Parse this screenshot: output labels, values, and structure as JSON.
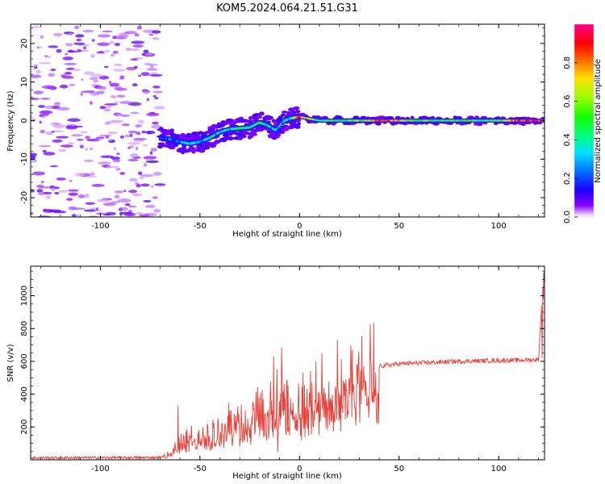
{
  "title": "KOM5.2024.064.21.51.G31",
  "chart_data": [
    {
      "type": "heatmap",
      "xlabel": "Height of straight line (km)",
      "ylabel": "Frequency (Hz)",
      "xlim": [
        -135,
        123
      ],
      "ylim": [
        -25,
        25
      ],
      "xticks": [
        -100,
        -50,
        0,
        50,
        100
      ],
      "yticks": [
        -20,
        -10,
        0,
        10,
        20
      ],
      "colorbar": {
        "label": "Normalized spectral amplitude",
        "range": [
          0,
          1
        ],
        "ticks": [
          "0.0",
          "0.2",
          "0.4",
          "0.6",
          "0.8"
        ],
        "colormap": "gist_ncar"
      },
      "ridge": {
        "x": [
          -70,
          -65,
          -60,
          -55,
          -50,
          -45,
          -40,
          -35,
          -30,
          -25,
          -20,
          -17,
          -15,
          -12,
          -10,
          -8,
          -5,
          0,
          5,
          10,
          20,
          30,
          40,
          60,
          80,
          100,
          110,
          123
        ],
        "y": [
          -4.5,
          -4.8,
          -5.5,
          -6,
          -5.5,
          -4.5,
          -3,
          -2.2,
          -2,
          -1.8,
          -0.5,
          -1,
          -1.5,
          -2.5,
          -1.5,
          -0.2,
          0.5,
          1,
          0.5,
          0,
          0,
          0,
          0,
          0,
          0,
          0,
          0,
          0
        ],
        "amplitude": [
          0.1,
          0.15,
          0.22,
          0.3,
          0.25,
          0.28,
          0.3,
          0.32,
          0.35,
          0.38,
          0.4,
          0.36,
          0.3,
          0.35,
          0.3,
          0.25,
          0.32,
          0.85,
          0.6,
          0.4,
          0.45,
          0.5,
          0.85,
          0.5,
          0.45,
          0.45,
          0.85,
          0.85
        ]
      },
      "noise_region_x": [
        -135,
        -70
      ]
    },
    {
      "type": "line",
      "xlabel": "Height of straight line (km)",
      "ylabel": "SNR (v/v)",
      "xlim": [
        -135,
        123
      ],
      "ylim": [
        0,
        1180
      ],
      "xticks": [
        -100,
        -50,
        0,
        50,
        100
      ],
      "yticks": [
        200,
        400,
        600,
        800,
        1000
      ],
      "color": "#e8413a",
      "envelope": {
        "x": [
          -135,
          -70,
          -65,
          -60,
          -55,
          -50,
          -45,
          -40,
          -35,
          -30,
          -25,
          -20,
          -15,
          -10,
          -5,
          0,
          5,
          10,
          15,
          20,
          25,
          30,
          35,
          40,
          50,
          60,
          70,
          80,
          90,
          100,
          110,
          120,
          122,
          123
        ],
        "y": [
          12,
          14,
          40,
          110,
          140,
          120,
          160,
          170,
          230,
          230,
          260,
          300,
          320,
          380,
          300,
          330,
          390,
          430,
          460,
          490,
          510,
          530,
          560,
          570,
          585,
          590,
          595,
          600,
          603,
          605,
          607,
          610,
          1050,
          1130
        ]
      },
      "spikes": [
        {
          "x": -61,
          "y": 330
        },
        {
          "x": -35,
          "y": 300
        },
        {
          "x": -22,
          "y": 340
        },
        {
          "x": -13,
          "y": 630
        },
        {
          "x": -9,
          "y": 685
        },
        {
          "x": -11,
          "y": 45
        }
      ]
    }
  ]
}
